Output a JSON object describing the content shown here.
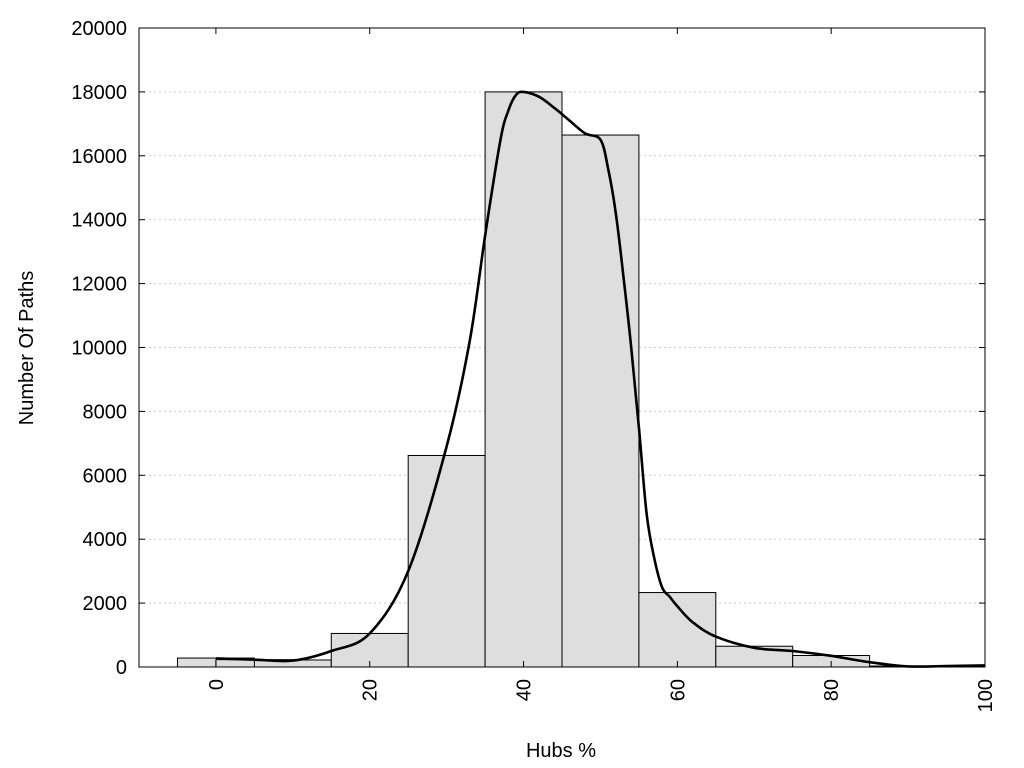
{
  "chart_data": {
    "type": "bar",
    "subtype": "histogram-with-smoothed-curve",
    "xlabel": "Hubs %",
    "ylabel": "Number Of Paths",
    "xlim": [
      -10,
      100
    ],
    "ylim": [
      0,
      20000
    ],
    "x_ticks": [
      0,
      20,
      40,
      60,
      80,
      100
    ],
    "x_tick_labels": [
      "0",
      "20",
      "40",
      "60",
      "80",
      "100"
    ],
    "y_ticks": [
      0,
      2000,
      4000,
      6000,
      8000,
      10000,
      12000,
      14000,
      16000,
      18000,
      20000
    ],
    "y_tick_labels": [
      "0",
      "2000",
      "4000",
      "6000",
      "8000",
      "10000",
      "12000",
      "14000",
      "16000",
      "18000",
      "20000"
    ],
    "grid": "horizontal dotted",
    "bar_width": 10,
    "bars": [
      {
        "x": 0,
        "value": 280
      },
      {
        "x": 5,
        "value": 230
      },
      {
        "x": 10,
        "value": 220
      },
      {
        "x": 20,
        "value": 1050
      },
      {
        "x": 30,
        "value": 6620
      },
      {
        "x": 40,
        "value": 18000
      },
      {
        "x": 50,
        "value": 16650
      },
      {
        "x": 60,
        "value": 2330
      },
      {
        "x": 70,
        "value": 650
      },
      {
        "x": 80,
        "value": 360
      },
      {
        "x": 90,
        "value": 30
      },
      {
        "x": 100,
        "value": 30
      }
    ],
    "curve": {
      "x": [
        0,
        5,
        10,
        15,
        20,
        25,
        30,
        33,
        35,
        37,
        38,
        39,
        40,
        42,
        44,
        46,
        48,
        50,
        51,
        52,
        53,
        54,
        55,
        56,
        57,
        58,
        59,
        60,
        62,
        65,
        70,
        75,
        80,
        85,
        90,
        95,
        100
      ],
      "y": [
        270,
        230,
        200,
        500,
        1050,
        3000,
        6900,
        10200,
        13500,
        16500,
        17400,
        17900,
        18000,
        17850,
        17500,
        17100,
        16700,
        16500,
        15600,
        14200,
        12200,
        10000,
        7500,
        4800,
        3400,
        2500,
        2200,
        1900,
        1400,
        950,
        600,
        500,
        350,
        150,
        20,
        30,
        50
      ]
    },
    "colors": {
      "bar_fill": "#dedede",
      "bar_stroke": "#000000",
      "curve": "#000000",
      "grid": "#c8c8c8"
    }
  }
}
